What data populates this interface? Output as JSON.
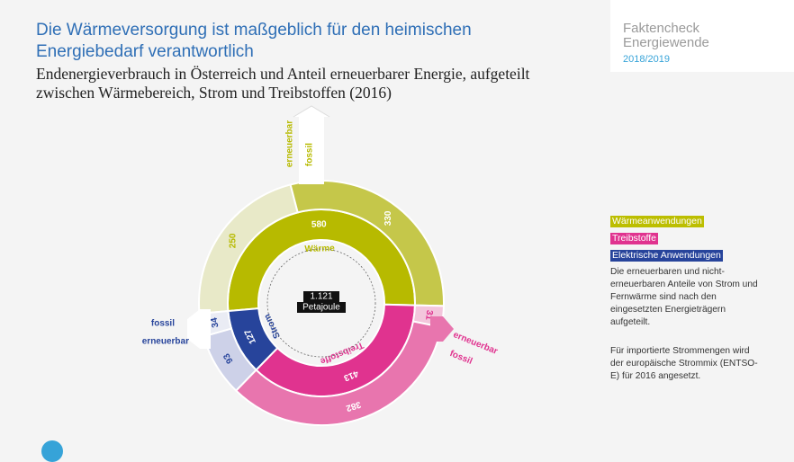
{
  "title": "Die Wärmeversorgung ist maßgeblich für den heimischen Energiebedarf verantwortlich",
  "subtitle": "Endenergieverbrauch in Österreich und Anteil erneuerbarer Energie, aufgeteilt zwischen Wärmebereich, Strom und Treibstoffen (2016)",
  "brand": {
    "line1": "Faktencheck",
    "line2": "Energiewende",
    "line3": "2018/2019"
  },
  "legend": [
    {
      "label": "Wärmeanwendungen",
      "color": "#bcbe00"
    },
    {
      "label": "Treibstoffe",
      "color": "#e0338f"
    },
    {
      "label": "Elektrische Anwendungen",
      "color": "#27449b"
    }
  ],
  "notes": [
    "Die erneuerbaren und nicht-erneuerbaren Anteile von Strom und Fernwärme sind nach den eingesetzten Energieträgern aufgeteilt.",
    "Für importierte Strommengen wird der europäische Strommix (ENTSO-E) für 2016 angesetzt."
  ],
  "chart_data": {
    "type": "pie",
    "title": "",
    "total": {
      "value": "1.121",
      "unit": "Petajoule"
    },
    "inner": [
      {
        "name": "Wärme",
        "value": 580,
        "color": "#b7ba00"
      },
      {
        "name": "Treibstoffe",
        "value": 413,
        "color": "#e0338f"
      },
      {
        "name": "Strom",
        "value": 127,
        "color": "#27449b"
      }
    ],
    "outer": [
      {
        "group": "Wärme",
        "label": "erneuerbar",
        "value": 250,
        "color": "#e8e9c8"
      },
      {
        "group": "Wärme",
        "label": "fossil",
        "value": 330,
        "color": "#c5c74a"
      },
      {
        "group": "Treibstoffe",
        "label": "erneuerbar",
        "value": 31,
        "color": "#f3c6dc"
      },
      {
        "group": "Treibstoffe",
        "label": "fossil",
        "value": 382,
        "color": "#e875ae"
      },
      {
        "group": "Strom",
        "label": "erneuerbar",
        "value": 93,
        "color": "#cdd1e8"
      },
      {
        "group": "Strom",
        "label": "fossil",
        "value": 34,
        "color": "#eaecf4"
      }
    ],
    "labels": {
      "erneuerbar": "erneuerbar",
      "fossil": "fossil"
    }
  }
}
